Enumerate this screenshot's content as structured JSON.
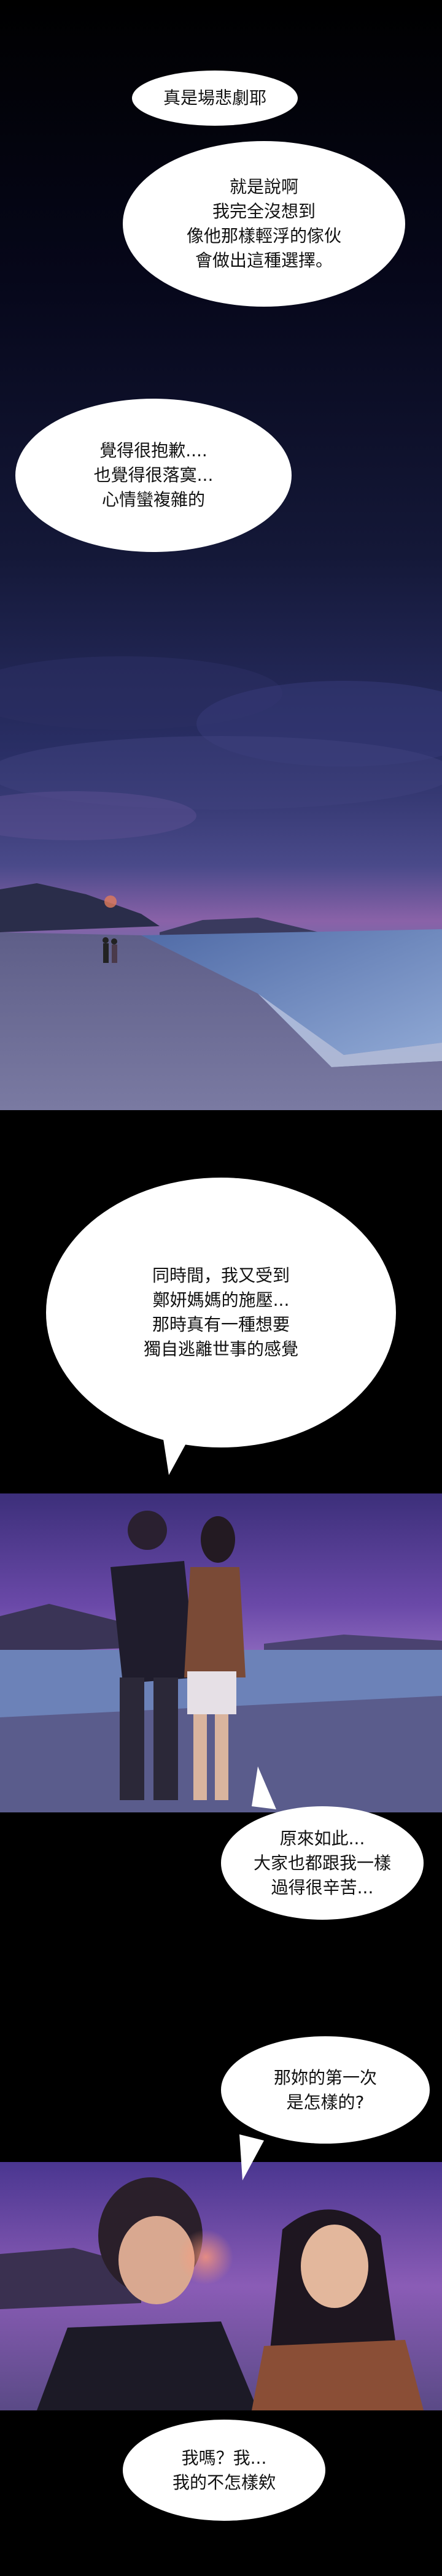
{
  "bubbles": {
    "b1": "真是場悲劇耶",
    "b2": "就是說啊\n我完全沒想到\n像他那樣輕浮的傢伙\n會做出這種選擇。",
    "b3": "覺得很抱歉....\n也覺得很落寞...\n心情蠻複雜的",
    "b4": "同時間，我又受到\n鄭妍媽媽的施壓...\n那時真有一種想要\n獨自逃離世事的感覺",
    "b5": "原來如此...\n大家也都跟我一樣\n過得很辛苦...",
    "b6": "那妳的第一次\n是怎樣的?",
    "b7": "我嗎？我...\n我的不怎樣欸"
  },
  "colors": {
    "night_top": "#0b0c1e",
    "night_mid": "#1c2148",
    "sky_dusk": "#3a3f7a",
    "horizon_purple": "#7b56a8",
    "sea": "#5c7cb0",
    "sand": "#6e6e96",
    "panel2_sky": "#5a3f96",
    "panel3_sky": "#7a4aa8"
  }
}
